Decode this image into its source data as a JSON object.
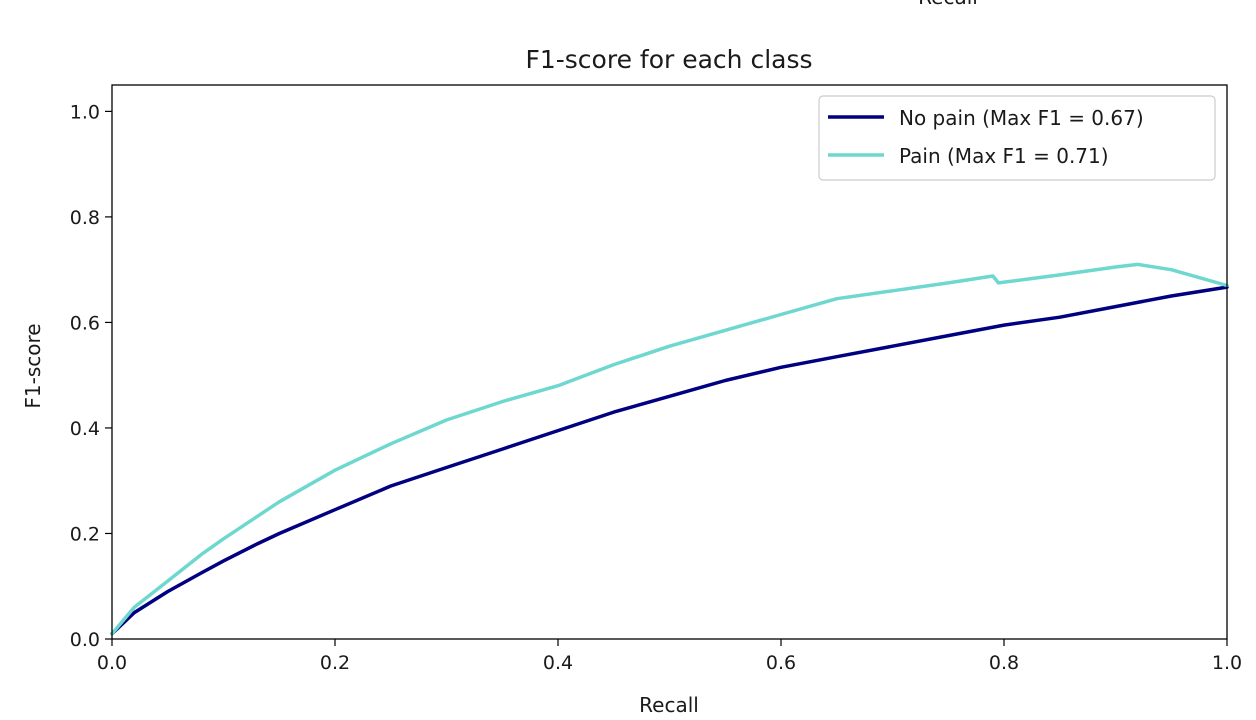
{
  "top_cut_label": "Recall",
  "chart_data": {
    "type": "line",
    "title": "F1-score for each class",
    "xlabel": "Recall",
    "ylabel": "F1-score",
    "xlim": [
      0.0,
      1.0
    ],
    "ylim": [
      0.0,
      1.05
    ],
    "xticks": [
      0.0,
      0.2,
      0.4,
      0.6,
      0.8,
      1.0
    ],
    "xtick_labels": [
      "0.0",
      "0.2",
      "0.4",
      "0.6",
      "0.8",
      "1.0"
    ],
    "yticks": [
      0.0,
      0.2,
      0.4,
      0.6,
      0.8,
      1.0
    ],
    "ytick_labels": [
      "0.0",
      "0.2",
      "0.4",
      "0.6",
      "0.8",
      "1.0"
    ],
    "grid": false,
    "legend_position": "top-right",
    "series": [
      {
        "name": "No pain (Max F1 = 0.67)",
        "color": "#000080",
        "x": [
          0.0,
          0.02,
          0.05,
          0.08,
          0.1,
          0.13,
          0.15,
          0.2,
          0.25,
          0.3,
          0.35,
          0.4,
          0.45,
          0.5,
          0.55,
          0.6,
          0.65,
          0.7,
          0.75,
          0.8,
          0.85,
          0.9,
          0.95,
          1.0
        ],
        "y": [
          0.01,
          0.05,
          0.09,
          0.125,
          0.148,
          0.18,
          0.2,
          0.245,
          0.29,
          0.325,
          0.36,
          0.395,
          0.43,
          0.46,
          0.49,
          0.515,
          0.535,
          0.555,
          0.575,
          0.595,
          0.61,
          0.63,
          0.65,
          0.667
        ]
      },
      {
        "name": "Pain (Max F1 = 0.71)",
        "color": "#6ed8d0",
        "x": [
          0.0,
          0.02,
          0.05,
          0.08,
          0.1,
          0.15,
          0.2,
          0.25,
          0.3,
          0.35,
          0.4,
          0.45,
          0.5,
          0.55,
          0.6,
          0.65,
          0.7,
          0.75,
          0.79,
          0.795,
          0.85,
          0.9,
          0.92,
          0.95,
          1.0
        ],
        "y": [
          0.01,
          0.06,
          0.11,
          0.16,
          0.19,
          0.26,
          0.32,
          0.37,
          0.415,
          0.45,
          0.48,
          0.52,
          0.555,
          0.585,
          0.615,
          0.645,
          0.66,
          0.675,
          0.688,
          0.675,
          0.69,
          0.705,
          0.71,
          0.7,
          0.67
        ]
      }
    ]
  }
}
